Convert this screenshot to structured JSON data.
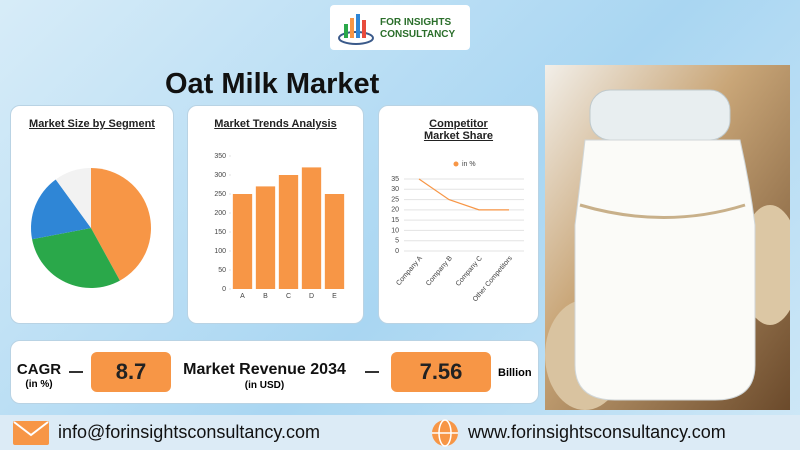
{
  "logo": {
    "line1": "FOR INSIGHTS",
    "line2": "CONSULTANCY"
  },
  "title": "Oat Milk Market",
  "chart_data": [
    {
      "type": "pie",
      "title": "Market Size by Segment",
      "values": [
        42,
        30,
        18,
        10
      ],
      "colors": [
        "#f79646",
        "#2aa84a",
        "#2f86d6",
        "#f2f2f2"
      ]
    },
    {
      "type": "bar",
      "title": "Market Trends Analysis",
      "categories": [
        "A",
        "B",
        "C",
        "D",
        "E"
      ],
      "values": [
        250,
        270,
        300,
        320,
        250
      ],
      "color": "#f79646",
      "ylim": [
        0,
        350
      ],
      "yticks": [
        0,
        50,
        100,
        150,
        200,
        250,
        300,
        350
      ]
    },
    {
      "type": "line",
      "title": "Competitor Market Share",
      "categories": [
        "Company A",
        "Company B",
        "Company C",
        "Other Competitors"
      ],
      "series": [
        {
          "name": "in %",
          "color": "#f79646",
          "values": [
            35,
            25,
            20,
            20
          ]
        }
      ],
      "ylim": [
        0,
        35
      ],
      "yticks": [
        0,
        5,
        10,
        15,
        20,
        25,
        30,
        35
      ],
      "grid": true,
      "legend": "top"
    }
  ],
  "stats": {
    "cagr_label": "CAGR",
    "cagr_unit": "(in %)",
    "cagr_value": "8.7",
    "revenue_label": "Market Revenue 2034",
    "revenue_unit": "(in USD)",
    "revenue_value": "7.56",
    "revenue_scale": "Billion"
  },
  "footer": {
    "email": "info@forinsightsconsultancy.com",
    "website": "www.forinsightsconsultancy.com"
  }
}
